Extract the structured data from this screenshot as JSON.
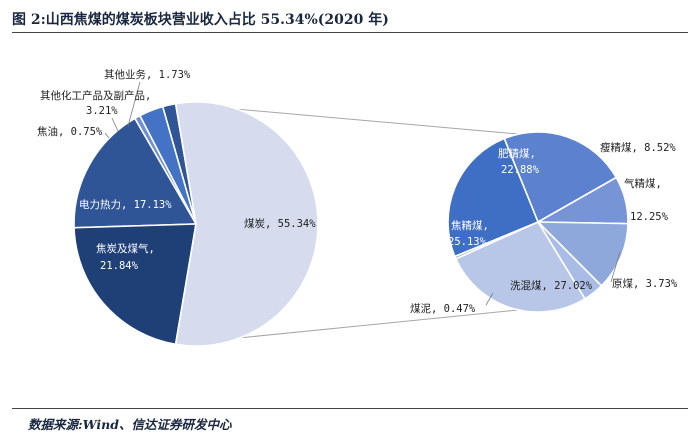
{
  "title": "图 2:山西焦煤的煤炭板块营业收入占比 55.34%(2020 年)",
  "source": "数据来源:Wind、信达证券研发中心",
  "colors": {
    "coal": "#d6dbed",
    "other": "#2f5597",
    "chem": "#4472c4",
    "tar": "#6d8fd3",
    "power": "#2f5597",
    "coke": "#1f3f77",
    "connector": "#a6a6a6",
    "fat": "#5b81cf",
    "lean": "#7794d6",
    "gas": "#8fa8dc",
    "misc": "#a9bce6",
    "washed": "#b8c6e8",
    "slime": "#9db0de",
    "coking": "#3f6fc4"
  },
  "chart_data": [
    {
      "type": "pie",
      "title": "",
      "slices": [
        {
          "label": "其他业务",
          "value": 1.73,
          "display": "其他业务, 1.73%",
          "color": "#2f5597"
        },
        {
          "label": "其他化工产品及副产品",
          "value": 3.21,
          "display_line1": "其他化工产品及副产品,",
          "display_line2": "3.21%",
          "color": "#4472c4"
        },
        {
          "label": "焦油",
          "value": 0.75,
          "display": "焦油, 0.75%",
          "color": "#6d8fd3"
        },
        {
          "label": "电力热力",
          "value": 17.13,
          "display": "电力热力, 17.13%",
          "color": "#2f5597"
        },
        {
          "label": "焦炭及煤气",
          "value": 21.84,
          "display_line1": "焦炭及煤气,",
          "display_line2": "21.84%",
          "color": "#1f3f77"
        },
        {
          "label": "煤炭",
          "value": 55.34,
          "display": "煤炭, 55.34%",
          "color": "#d6dbed"
        }
      ]
    },
    {
      "type": "pie",
      "title": "",
      "slices": [
        {
          "label": "肥精煤",
          "value": 22.88,
          "display_line1": "肥精煤,",
          "display_line2": "22.88%",
          "color": "#5b81cf"
        },
        {
          "label": "瘦精煤",
          "value": 8.52,
          "display": "瘦精煤, 8.52%",
          "color": "#7794d6"
        },
        {
          "label": "气精煤",
          "value": 12.25,
          "display_line1": "气精煤,",
          "display_line2": "12.25%",
          "color": "#8fa8dc"
        },
        {
          "label": "原煤",
          "value": 3.73,
          "display": "原煤, 3.73%",
          "color": "#a9bce6"
        },
        {
          "label": "洗混煤",
          "value": 27.02,
          "display": "洗混煤, 27.02%",
          "color": "#b8c6e8"
        },
        {
          "label": "煤泥",
          "value": 0.47,
          "display": "煤泥, 0.47%",
          "color": "#9db0de"
        },
        {
          "label": "焦精煤",
          "value": 25.13,
          "display_line1": "焦精煤,",
          "display_line2": "25.13%",
          "color": "#3f6fc4"
        }
      ]
    }
  ]
}
